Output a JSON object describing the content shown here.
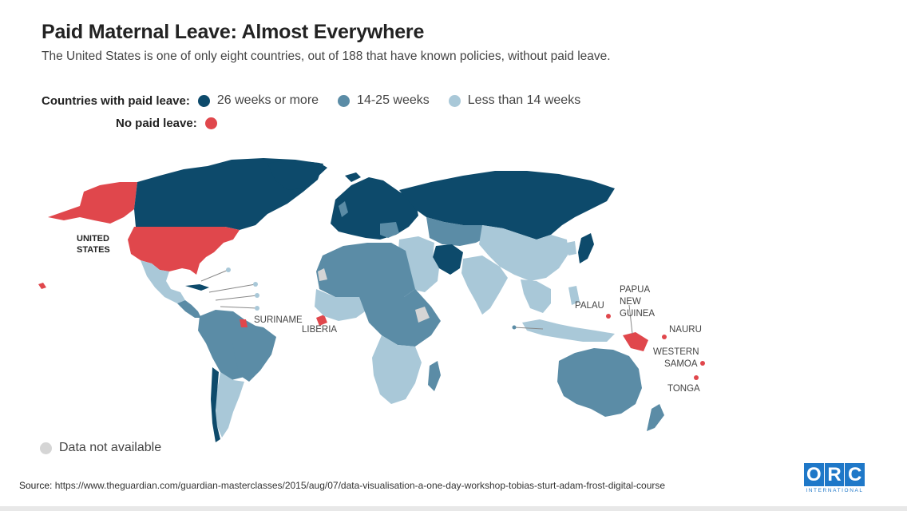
{
  "title": "Paid Maternal Leave: Almost Everywhere",
  "subtitle": "The United States is one of only eight countries, out of 188 that have known policies, without paid leave.",
  "legend": {
    "paid_label": "Countries with paid leave:",
    "items": [
      {
        "label": "26 weeks or more",
        "color": "#0d4a6b"
      },
      {
        "label": "14-25 weeks",
        "color": "#5b8ca6"
      },
      {
        "label": "Less than 14 weeks",
        "color": "#a9c8d8"
      }
    ],
    "no_paid_label": "No paid leave:",
    "no_paid_color": "#e0474c"
  },
  "map_labels": {
    "united_states_1": "UNITED",
    "united_states_2": "STATES",
    "suriname": "SURINAME",
    "liberia": "LIBERIA",
    "palau": "PALAU",
    "papua_1": "PAPUA",
    "papua_2": "NEW",
    "papua_3": "GUINEA",
    "nauru": "NAURU",
    "samoa_1": "WESTERN",
    "samoa_2": "SAMOA",
    "tonga": "TONGA"
  },
  "data_not_available": {
    "label": "Data not available",
    "color": "#d5d5d5"
  },
  "source": {
    "prefix": "Source:",
    "url": "https://www.theguardian.com/guardian-masterclasses/2015/aug/07/data-visualisation-a-one-day-workshop-tobias-sturt-adam-frost-digital-course"
  },
  "logo": {
    "letters": [
      "O",
      "R",
      "C"
    ],
    "sub": "INTERNATIONAL"
  }
}
